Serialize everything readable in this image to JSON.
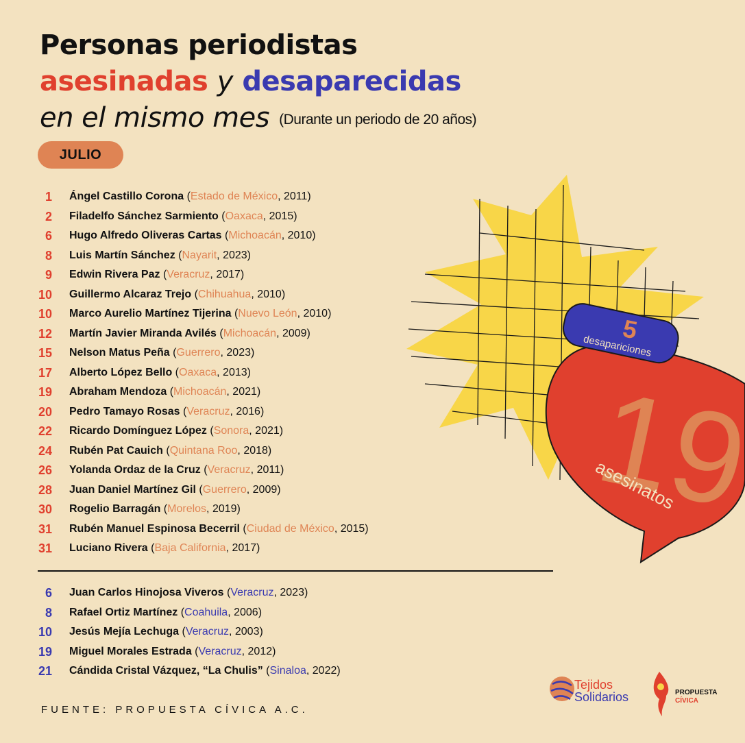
{
  "title": {
    "line1": "Personas periodistas",
    "line2_a": "asesinadas",
    "line2_b": "y",
    "line2_c": "desaparecidas",
    "line3": "en el mismo mes",
    "subtitle": "(Durante un periodo de 20 años)"
  },
  "month": "JULIO",
  "asesinados": [
    {
      "day": "1",
      "name": "Ángel Castillo Corona",
      "state": "Estado de México",
      "year": ", 2011)"
    },
    {
      "day": "2",
      "name": "Filadelfo Sánchez Sarmiento",
      "state": "Oaxaca",
      "year": ", 2015)"
    },
    {
      "day": "6",
      "name": "Hugo Alfredo Oliveras Cartas",
      "state": "Michoacán",
      "year": ", 2010)"
    },
    {
      "day": "8",
      "name": "Luis Martín Sánchez",
      "state": "Nayarit",
      "year": ", 2023)"
    },
    {
      "day": "9",
      "name": "Edwin Rivera Paz",
      "state": "Veracruz",
      "year": ", 2017)"
    },
    {
      "day": "10",
      "name": "Guillermo Alcaraz Trejo",
      "state": "Chihuahua",
      "year": ", 2010)"
    },
    {
      "day": "10",
      "name": "Marco Aurelio Martínez Tijerina",
      "state": "Nuevo León",
      "year": ", 2010)"
    },
    {
      "day": "12",
      "name": "Martín Javier Miranda Avilés",
      "state": "Michoacán",
      "year": ", 2009)"
    },
    {
      "day": "15",
      "name": "Nelson Matus Peña",
      "state": "Guerrero",
      "year": ", 2023)"
    },
    {
      "day": "17",
      "name": "Alberto López Bello",
      "state": "Oaxaca",
      "year": ", 2013)"
    },
    {
      "day": "19",
      "name": "Abraham Mendoza",
      "state": "Michoacán",
      "year": ", 2021)"
    },
    {
      "day": "20",
      "name": "Pedro Tamayo Rosas",
      "state": "Veracruz",
      "year": ", 2016)"
    },
    {
      "day": "22",
      "name": "Ricardo Domínguez López",
      "state": "Sonora",
      "year": ", 2021)"
    },
    {
      "day": "24",
      "name": "Rubén Pat Cauich",
      "state": "Quintana Roo",
      "year": ", 2018)"
    },
    {
      "day": "26",
      "name": "Yolanda Ordaz de la Cruz",
      "state": "Veracruz",
      "year": ", 2011)"
    },
    {
      "day": "28",
      "name": "Juan Daniel Martínez Gil",
      "state": "Guerrero",
      "year": ", 2009)"
    },
    {
      "day": "30",
      "name": "Rogelio Barragán",
      "state": "Morelos",
      "year": ", 2019)"
    },
    {
      "day": "31",
      "name": "Rubén Manuel Espinosa Becerril",
      "state": "Ciudad de México",
      "year": ", 2015)"
    },
    {
      "day": "31",
      "name": "Luciano Rivera",
      "state": "Baja California",
      "year": ", 2017)"
    }
  ],
  "desaparecidos": [
    {
      "day": "6",
      "name": "Juan Carlos Hinojosa Viveros",
      "state": "Veracruz",
      "year": ", 2023)"
    },
    {
      "day": "8",
      "name": "Rafael Ortiz Martínez",
      "state": "Coahuila",
      "year": ", 2006)"
    },
    {
      "day": "10",
      "name": "Jesús Mejía Lechuga",
      "state": "Veracruz",
      "year": ", 2003)"
    },
    {
      "day": "19",
      "name": "Miguel Morales Estrada",
      "state": "Veracruz",
      "year": ", 2012)"
    },
    {
      "day": "21",
      "name": "Cándida Cristal Vázquez, “La Chulis”",
      "state": "Sinaloa",
      "year": ", 2022)"
    }
  ],
  "stats": {
    "desapariciones_count": "5",
    "desapariciones_label": "desapariciones",
    "asesinatos_count": "19",
    "asesinatos_label": "asesinatos"
  },
  "source": "FUENTE: PROPUESTA CÍVICA A.C.",
  "logos": {
    "tejidos_line1": "Tejidos",
    "tejidos_line2": "Solidarios",
    "propuesta_line1": "PROPUESTA",
    "propuesta_line2": "CÍVICA"
  },
  "colors": {
    "background": "#f3e2c0",
    "asesinadas": "#e0402e",
    "desaparecidas": "#3a3ab0",
    "state_text": "#df8454",
    "star": "#f8d648",
    "bubble": "#e0402e",
    "pill": "#3a3ab0",
    "big_number": "#df8454"
  }
}
